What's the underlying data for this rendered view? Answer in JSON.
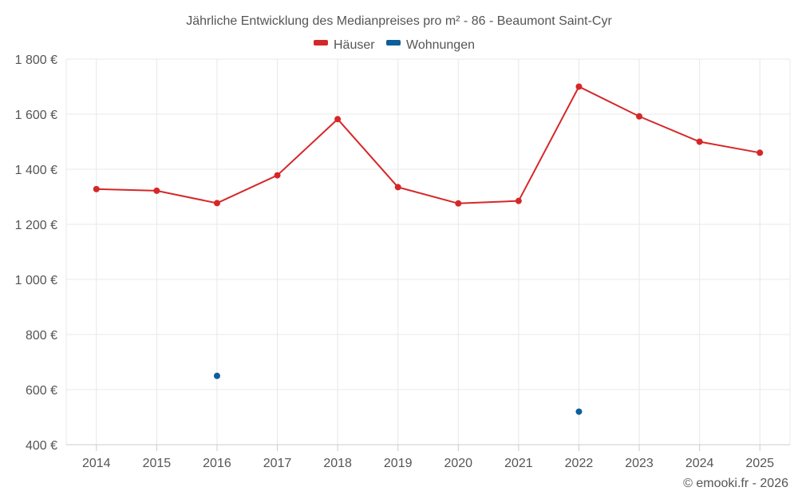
{
  "chart_data": {
    "type": "line",
    "title": "Jährliche Entwicklung des Medianpreises pro m² - 86 - Beaumont Saint-Cyr",
    "categories": [
      "2014",
      "2015",
      "2016",
      "2017",
      "2018",
      "2019",
      "2020",
      "2021",
      "2022",
      "2023",
      "2024",
      "2025"
    ],
    "series": [
      {
        "name": "Häuser",
        "color": "#d62728",
        "values": [
          1328,
          1322,
          1277,
          1378,
          1582,
          1335,
          1276,
          1285,
          1700,
          1592,
          1500,
          1460
        ]
      },
      {
        "name": "Wohnungen",
        "color": "#0b5f9a",
        "values": [
          null,
          null,
          650,
          null,
          null,
          null,
          null,
          null,
          520,
          null,
          null,
          null
        ]
      }
    ],
    "ylim": [
      400,
      1800
    ],
    "yticks": [
      400,
      600,
      800,
      1000,
      1200,
      1400,
      1600,
      1800
    ],
    "ytick_labels": [
      "400 €",
      "600 €",
      "800 €",
      "1 000 €",
      "1 200 €",
      "1 400 €",
      "1 600 €",
      "1 800 €"
    ],
    "xlabel": "",
    "ylabel": "",
    "grid": true,
    "legend_position": "top-center"
  },
  "credit": "© emooki.fr - 2026"
}
